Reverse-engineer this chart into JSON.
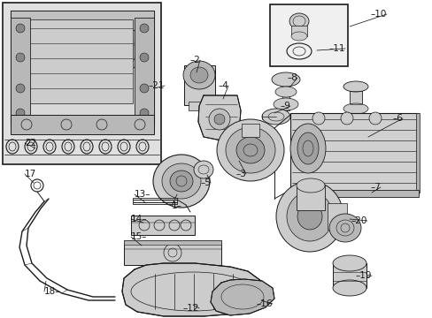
{
  "bg": "#ffffff",
  "lc": "#1a1a1a",
  "lc2": "#333333",
  "gray1": "#cccccc",
  "gray2": "#aaaaaa",
  "gray3": "#e0e0e0",
  "inset_bg": "#dddddd",
  "label_fs": 7.5,
  "lw_main": 0.8,
  "lw_thin": 0.5,
  "lw_thick": 1.1
}
